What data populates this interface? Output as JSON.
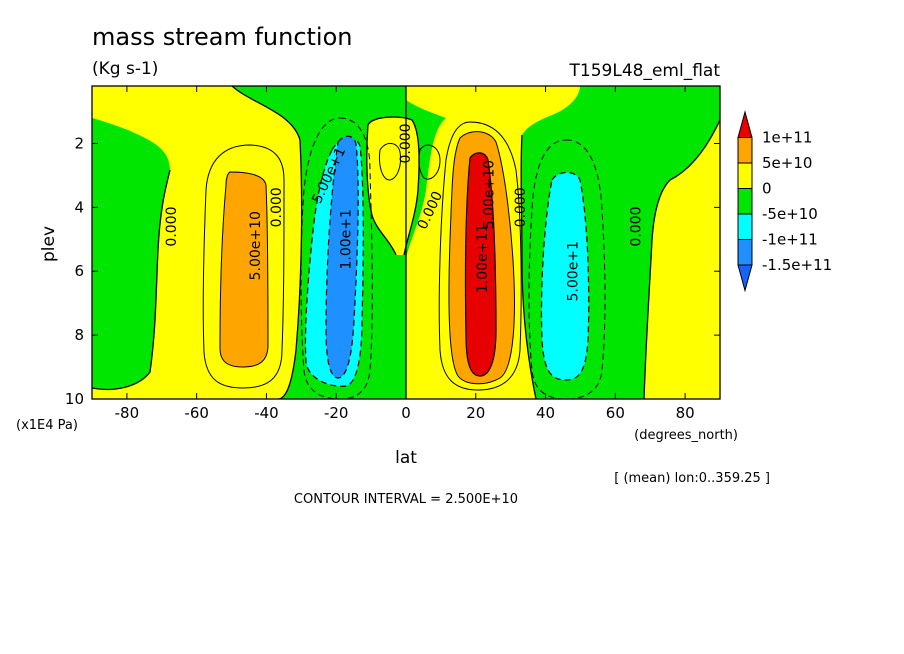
{
  "chart_data": {
    "type": "contour",
    "title": "mass stream function",
    "subtitle": "(Kg s-1)",
    "run_label": "T159L48_eml_flat",
    "xlabel": "lat",
    "xunits": "(degrees_north)",
    "ylabel": "plev",
    "yunits": "(x1E4 Pa)",
    "averaging_note": "[ (mean) lon:0..359.25 ]",
    "contour_interval_text": "CONTOUR INTERVAL = 2.500E+10",
    "xlim": [
      -90,
      90
    ],
    "ylim": [
      0.2,
      10
    ],
    "y_reversed": true,
    "xticks": [
      -80,
      -60,
      -40,
      -20,
      0,
      20,
      40,
      60,
      80
    ],
    "yticks": [
      2,
      4,
      6,
      8,
      10
    ],
    "colorbar": {
      "labels": [
        "1e+11",
        "5e+10",
        "0",
        "-5e+10",
        "-1e+11",
        "-1.5e+11"
      ],
      "colors": [
        "#e60000",
        "#ffa500",
        "#ffff00",
        "#00e600",
        "#00ffff",
        "#1e90ff",
        "#1464ff"
      ]
    },
    "contour_labels": [
      {
        "text": "5.00e+10",
        "lat": -43,
        "plev": 5.2,
        "angle": -90
      },
      {
        "text": "0.000",
        "lat": -67,
        "plev": 4.6,
        "angle": -90
      },
      {
        "text": "0.000",
        "lat": -37,
        "plev": 4.0,
        "angle": -90
      },
      {
        "text": "5.00e+1",
        "lat": -22,
        "plev": 3.0,
        "angle": -65
      },
      {
        "text": "1.00e+1",
        "lat": -17,
        "plev": 5.0,
        "angle": -90
      },
      {
        "text": "0.000",
        "lat": 0,
        "plev": 2.0,
        "angle": -90
      },
      {
        "text": "0.000",
        "lat": 7,
        "plev": 4.1,
        "angle": -65
      },
      {
        "text": "5.00e+10",
        "lat": 24,
        "plev": 3.6,
        "angle": -90
      },
      {
        "text": "1.00e+11",
        "lat": 22,
        "plev": 5.6,
        "angle": -90
      },
      {
        "text": "0.000",
        "lat": 33,
        "plev": 4.0,
        "angle": -90
      },
      {
        "text": "5.00e+1",
        "lat": 48,
        "plev": 6.0,
        "angle": -90
      },
      {
        "text": "0.000",
        "lat": 66,
        "plev": 4.6,
        "angle": -90
      }
    ],
    "cells": [
      {
        "name": "sh-hadley-positive",
        "center_lat": -43,
        "center_plev": 5.5,
        "max_level": "5e+10"
      },
      {
        "name": "sh-negative-cell",
        "center_lat": -19,
        "center_plev": 5.5,
        "min_level": "-1.5e+11"
      },
      {
        "name": "nh-hadley-positive",
        "center_lat": 20,
        "center_plev": 5.5,
        "max_level": "1e+11"
      },
      {
        "name": "nh-negative-cell",
        "center_lat": 45,
        "center_plev": 6.0,
        "min_level": "-1e+11"
      }
    ]
  }
}
